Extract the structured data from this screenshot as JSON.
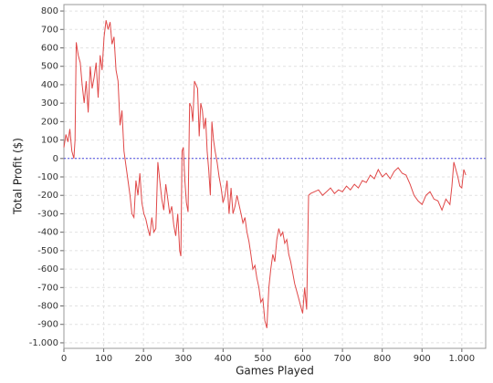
{
  "chart_data": {
    "type": "line",
    "x_label": "Games Played",
    "y_label": "Total Profit ($)",
    "color": "#e04848",
    "grid": true,
    "reference_line": {
      "value": 0,
      "color": "#4a4ae0"
    },
    "xlim": [
      0,
      1060
    ],
    "ylim": [
      -1030,
      835
    ],
    "xticks": [
      0,
      100,
      200,
      300,
      400,
      500,
      600,
      700,
      800,
      900,
      {
        "value": 1000,
        "label": "1.000"
      }
    ],
    "yticks": [
      {
        "value": -1000,
        "label": "-1.000"
      },
      -900,
      -800,
      -700,
      -600,
      -500,
      -400,
      -300,
      -200,
      -100,
      0,
      100,
      200,
      300,
      400,
      500,
      600,
      700,
      800
    ],
    "x": [
      0,
      5,
      10,
      15,
      20,
      25,
      28,
      31,
      36,
      41,
      46,
      51,
      56,
      61,
      66,
      71,
      76,
      81,
      86,
      91,
      96,
      101,
      106,
      111,
      116,
      121,
      126,
      131,
      136,
      141,
      146,
      151,
      156,
      161,
      166,
      171,
      176,
      181,
      186,
      191,
      196,
      201,
      206,
      211,
      216,
      221,
      226,
      231,
      236,
      241,
      246,
      251,
      256,
      261,
      266,
      271,
      276,
      281,
      286,
      291,
      294,
      297,
      300,
      304,
      308,
      312,
      316,
      320,
      324,
      328,
      332,
      336,
      340,
      344,
      348,
      352,
      356,
      360,
      364,
      368,
      372,
      376,
      380,
      385,
      390,
      395,
      400,
      405,
      410,
      415,
      420,
      425,
      430,
      435,
      440,
      445,
      450,
      455,
      460,
      465,
      470,
      475,
      480,
      485,
      490,
      495,
      500,
      505,
      510,
      515,
      520,
      525,
      530,
      535,
      540,
      545,
      550,
      555,
      560,
      565,
      570,
      575,
      580,
      585,
      590,
      595,
      600,
      605,
      610,
      615,
      620,
      630,
      640,
      650,
      660,
      670,
      680,
      690,
      700,
      710,
      720,
      730,
      740,
      750,
      760,
      770,
      780,
      790,
      800,
      810,
      820,
      830,
      840,
      850,
      860,
      870,
      880,
      890,
      900,
      910,
      920,
      930,
      940,
      950,
      960,
      970,
      975,
      980,
      985,
      990,
      995,
      1000,
      1005,
      1010
    ],
    "values": [
      60,
      130,
      90,
      160,
      40,
      0,
      100,
      630,
      560,
      520,
      400,
      300,
      420,
      250,
      500,
      380,
      440,
      520,
      330,
      560,
      480,
      660,
      750,
      700,
      740,
      620,
      660,
      480,
      420,
      180,
      260,
      40,
      -40,
      -120,
      -200,
      -300,
      -320,
      -120,
      -200,
      -80,
      -240,
      -300,
      -330,
      -380,
      -420,
      -320,
      -400,
      -380,
      -20,
      -120,
      -220,
      -280,
      -140,
      -220,
      -300,
      -260,
      -360,
      -420,
      -300,
      -500,
      -530,
      40,
      60,
      -120,
      -240,
      -290,
      300,
      280,
      200,
      420,
      400,
      380,
      120,
      300,
      260,
      160,
      220,
      40,
      -60,
      -200,
      200,
      100,
      40,
      -20,
      -100,
      -160,
      -240,
      -200,
      -120,
      -300,
      -160,
      -300,
      -260,
      -200,
      -250,
      -300,
      -350,
      -320,
      -400,
      -450,
      -520,
      -600,
      -580,
      -650,
      -700,
      -780,
      -760,
      -880,
      -920,
      -700,
      -600,
      -520,
      -560,
      -440,
      -380,
      -420,
      -400,
      -460,
      -440,
      -520,
      -560,
      -620,
      -680,
      -720,
      -760,
      -800,
      -840,
      -700,
      -820,
      -200,
      -190,
      -180,
      -170,
      -200,
      -180,
      -160,
      -190,
      -170,
      -180,
      -150,
      -170,
      -140,
      -160,
      -120,
      -130,
      -90,
      -110,
      -60,
      -100,
      -80,
      -110,
      -70,
      -50,
      -80,
      -90,
      -140,
      -200,
      -230,
      -250,
      -200,
      -180,
      -220,
      -230,
      -280,
      -220,
      -250,
      -150,
      -20,
      -60,
      -100,
      -150,
      -160,
      -60,
      -90
    ]
  }
}
